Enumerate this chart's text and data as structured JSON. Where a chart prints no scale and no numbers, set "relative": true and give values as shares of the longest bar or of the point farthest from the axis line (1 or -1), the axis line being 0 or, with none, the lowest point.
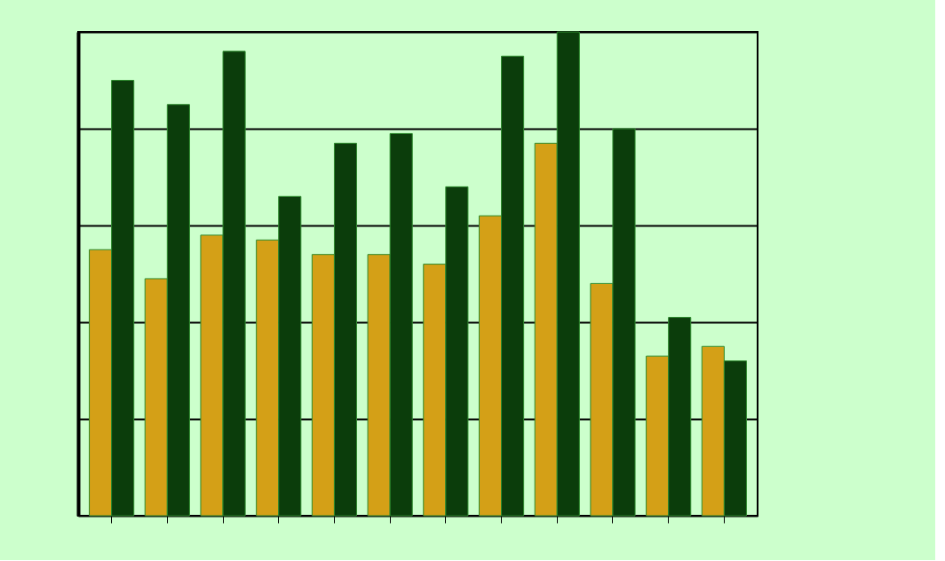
{
  "chart_data": {
    "type": "bar",
    "relative": true,
    "grid": "y",
    "categories": [
      null,
      null,
      null,
      null,
      null,
      null,
      null,
      null,
      null,
      null,
      null,
      null
    ],
    "series": [
      {
        "color": "#d4a017",
        "values": [
          0.55,
          0.49,
          0.58,
          0.57,
          0.54,
          0.54,
          0.52,
          0.62,
          0.77,
          0.48,
          0.33,
          0.35
        ]
      },
      {
        "color": "#0b3d0b",
        "values": [
          0.9,
          0.85,
          0.96,
          0.66,
          0.77,
          0.79,
          0.68,
          0.95,
          1.0,
          0.8,
          0.41,
          0.32
        ]
      }
    ]
  }
}
